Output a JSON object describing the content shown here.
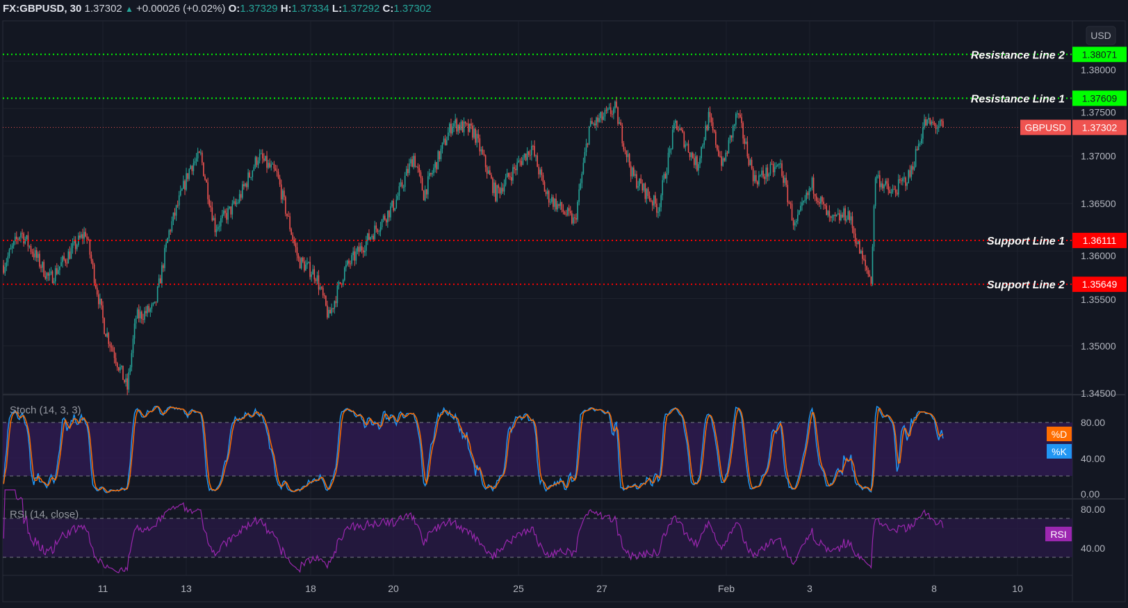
{
  "header": {
    "symbol": "FX:GBPUSD, 30",
    "last": "1.37302",
    "change": "+0.00026 (+0.02%)",
    "o_label": "O:",
    "o": "1.37329",
    "h_label": "H:",
    "h": "1.37334",
    "l_label": "L:",
    "l": "1.37292",
    "c_label": "C:",
    "c": "1.37302"
  },
  "currency_button": "USD",
  "price_axis": [
    "1.38000",
    "1.37500",
    "1.37000",
    "1.36500",
    "1.36000",
    "1.35500",
    "1.35000",
    "1.34500"
  ],
  "time_axis": [
    "11",
    "13",
    "18",
    "20",
    "25",
    "27",
    "Feb",
    "3",
    "8",
    "10"
  ],
  "levels": [
    {
      "label": "Resistance Line 2",
      "price": 1.38071,
      "price_text": "1.38071",
      "color": "#00ff00",
      "text_color": "#131722"
    },
    {
      "label": "Resistance Line 1",
      "price": 1.37609,
      "price_text": "1.37609",
      "color": "#00ff00",
      "text_color": "#131722"
    },
    {
      "label": "Support Line 1",
      "price": 1.36111,
      "price_text": "1.36111",
      "color": "#ff0000",
      "text_color": "#ffffff"
    },
    {
      "label": "Support Line 2",
      "price": 1.35649,
      "price_text": "1.35649",
      "color": "#ff0000",
      "text_color": "#ffffff"
    }
  ],
  "current_price": {
    "symbol": "GBPUSD",
    "price": 1.37302,
    "price_text": "1.37302",
    "color": "#ef5350"
  },
  "stoch": {
    "title": "Stoch (14, 3, 3)",
    "axis": [
      "80.00",
      "40.00",
      "0.00"
    ],
    "d_label": "%D",
    "k_label": "%K",
    "d_color": "#ff6d00",
    "k_color": "#2196f3",
    "upper": 80,
    "lower": 20
  },
  "rsi": {
    "title": "RSI (14, close)",
    "axis": [
      "80.00",
      "40.00"
    ],
    "label": "RSI",
    "color": "#9c27b0",
    "upper": 70,
    "lower": 30
  },
  "colors": {
    "up": "#26a69a",
    "down": "#ef5350",
    "bg": "#131722",
    "grid": "#1e222d"
  },
  "chart_data": {
    "type": "candlestick",
    "interval": "30",
    "bar_count": 654,
    "anchors_bar_price": [
      [
        0,
        1.3585
      ],
      [
        12,
        1.362
      ],
      [
        32,
        1.357
      ],
      [
        57,
        1.362
      ],
      [
        70,
        1.352
      ],
      [
        86,
        1.3455
      ],
      [
        92,
        1.353
      ],
      [
        105,
        1.354
      ],
      [
        115,
        1.362
      ],
      [
        130,
        1.369
      ],
      [
        137,
        1.37
      ],
      [
        147,
        1.3625
      ],
      [
        162,
        1.365
      ],
      [
        177,
        1.37
      ],
      [
        190,
        1.368
      ],
      [
        205,
        1.359
      ],
      [
        217,
        1.3575
      ],
      [
        226,
        1.353
      ],
      [
        237,
        1.358
      ],
      [
        252,
        1.361
      ],
      [
        272,
        1.365
      ],
      [
        285,
        1.37
      ],
      [
        292,
        1.366
      ],
      [
        312,
        1.3735
      ],
      [
        327,
        1.3725
      ],
      [
        342,
        1.366
      ],
      [
        367,
        1.371
      ],
      [
        377,
        1.366
      ],
      [
        397,
        1.363
      ],
      [
        407,
        1.373
      ],
      [
        425,
        1.375
      ],
      [
        437,
        1.368
      ],
      [
        455,
        1.3645
      ],
      [
        467,
        1.3735
      ],
      [
        482,
        1.369
      ],
      [
        490,
        1.374
      ],
      [
        500,
        1.369
      ],
      [
        510,
        1.3745
      ],
      [
        522,
        1.3675
      ],
      [
        540,
        1.369
      ],
      [
        550,
        1.3625
      ],
      [
        562,
        1.367
      ],
      [
        575,
        1.363
      ],
      [
        587,
        1.364
      ],
      [
        597,
        1.359
      ],
      [
        603,
        1.357
      ],
      [
        606,
        1.368
      ],
      [
        617,
        1.366
      ],
      [
        630,
        1.368
      ],
      [
        640,
        1.3735
      ],
      [
        653,
        1.37302
      ]
    ]
  }
}
